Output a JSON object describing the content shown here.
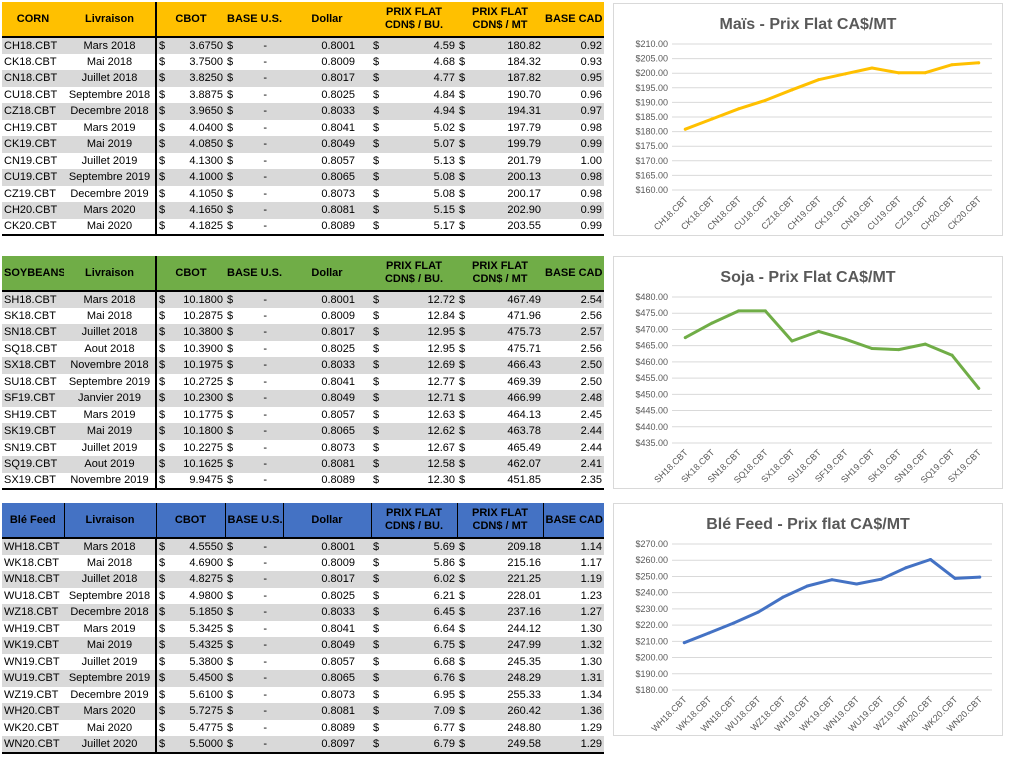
{
  "tables": [
    {
      "header_color": "#ffc000",
      "headers": [
        "CORN",
        "Livraison",
        "CBOT",
        "BASE U.S.",
        "Dollar",
        "PRIX FLAT\nCDN$ / BU.",
        "PRIX FLAT\nCDN$ / MT",
        "BASE CAD"
      ],
      "rows": [
        [
          "CH18.CBT",
          "Mars 2018",
          "$",
          "3.6750",
          "$",
          "-",
          "0.8001",
          "4.59",
          "180.82",
          "0.92"
        ],
        [
          "CK18.CBT",
          "Mai 2018",
          "$",
          "3.7500",
          "$",
          "-",
          "0.8009",
          "4.68",
          "184.32",
          "0.93"
        ],
        [
          "CN18.CBT",
          "Juillet 2018",
          "$",
          "3.8250",
          "$",
          "-",
          "0.8017",
          "4.77",
          "187.82",
          "0.95"
        ],
        [
          "CU18.CBT",
          "Septembre 2018",
          "$",
          "3.8875",
          "$",
          "-",
          "0.8025",
          "4.84",
          "190.70",
          "0.96"
        ],
        [
          "CZ18.CBT",
          "Decembre 2018",
          "$",
          "3.9650",
          "$",
          "-",
          "0.8033",
          "4.94",
          "194.31",
          "0.97"
        ],
        [
          "CH19.CBT",
          "Mars 2019",
          "$",
          "4.0400",
          "$",
          "-",
          "0.8041",
          "5.02",
          "197.79",
          "0.98"
        ],
        [
          "CK19.CBT",
          "Mai 2019",
          "$",
          "4.0850",
          "$",
          "-",
          "0.8049",
          "5.07",
          "199.79",
          "0.99"
        ],
        [
          "CN19.CBT",
          "Juillet 2019",
          "$",
          "4.1300",
          "$",
          "-",
          "0.8057",
          "5.13",
          "201.79",
          "1.00"
        ],
        [
          "CU19.CBT",
          "Septembre 2019",
          "$",
          "4.1000",
          "$",
          "-",
          "0.8065",
          "5.08",
          "200.13",
          "0.98"
        ],
        [
          "CZ19.CBT",
          "Decembre 2019",
          "$",
          "4.1050",
          "$",
          "-",
          "0.8073",
          "5.08",
          "200.17",
          "0.98"
        ],
        [
          "CH20.CBT",
          "Mars 2020",
          "$",
          "4.1650",
          "$",
          "-",
          "0.8081",
          "5.15",
          "202.90",
          "0.99"
        ],
        [
          "CK20.CBT",
          "Mai 2020",
          "$",
          "4.1825",
          "$",
          "-",
          "0.8089",
          "5.17",
          "203.55",
          "0.99"
        ]
      ]
    },
    {
      "header_color": "#70ad47",
      "headers": [
        "SOYBEANS",
        "Livraison",
        "CBOT",
        "BASE U.S.",
        "Dollar",
        "PRIX FLAT\nCDN$ / BU.",
        "PRIX FLAT\nCDN$ / MT",
        "BASE CAD"
      ],
      "rows": [
        [
          "SH18.CBT",
          "Mars 2018",
          "$",
          "10.1800",
          "$",
          "-",
          "0.8001",
          "12.72",
          "467.49",
          "2.54"
        ],
        [
          "SK18.CBT",
          "Mai 2018",
          "$",
          "10.2875",
          "$",
          "-",
          "0.8009",
          "12.84",
          "471.96",
          "2.56"
        ],
        [
          "SN18.CBT",
          "Juillet 2018",
          "$",
          "10.3800",
          "$",
          "-",
          "0.8017",
          "12.95",
          "475.73",
          "2.57"
        ],
        [
          "SQ18.CBT",
          "Aout 2018",
          "$",
          "10.3900",
          "$",
          "-",
          "0.8025",
          "12.95",
          "475.71",
          "2.56"
        ],
        [
          "SX18.CBT",
          "Novembre 2018",
          "$",
          "10.1975",
          "$",
          "-",
          "0.8033",
          "12.69",
          "466.43",
          "2.50"
        ],
        [
          "SU18.CBT",
          "Septembre 2019",
          "$",
          "10.2725",
          "$",
          "-",
          "0.8041",
          "12.77",
          "469.39",
          "2.50"
        ],
        [
          "SF19.CBT",
          "Janvier 2019",
          "$",
          "10.2300",
          "$",
          "-",
          "0.8049",
          "12.71",
          "466.99",
          "2.48"
        ],
        [
          "SH19.CBT",
          "Mars 2019",
          "$",
          "10.1775",
          "$",
          "-",
          "0.8057",
          "12.63",
          "464.13",
          "2.45"
        ],
        [
          "SK19.CBT",
          "Mai 2019",
          "$",
          "10.1800",
          "$",
          "-",
          "0.8065",
          "12.62",
          "463.78",
          "2.44"
        ],
        [
          "SN19.CBT",
          "Juillet 2019",
          "$",
          "10.2275",
          "$",
          "-",
          "0.8073",
          "12.67",
          "465.49",
          "2.44"
        ],
        [
          "SQ19.CBT",
          "Aout 2019",
          "$",
          "10.1625",
          "$",
          "-",
          "0.8081",
          "12.58",
          "462.07",
          "2.41"
        ],
        [
          "SX19.CBT",
          "Novembre 2019",
          "$",
          "9.9475",
          "$",
          "-",
          "0.8089",
          "12.30",
          "451.85",
          "2.35"
        ]
      ]
    },
    {
      "header_color": "#4472c4",
      "headers": [
        "Blé Feed",
        "Livraison",
        "CBOT",
        "BASE U.S.",
        "Dollar",
        "PRIX FLAT\nCDN$ / BU.",
        "PRIX FLAT\nCDN$ / MT",
        "BASE CAD"
      ],
      "rows": [
        [
          "WH18.CBT",
          "Mars 2018",
          "$",
          "4.5550",
          "$",
          "-",
          "0.8001",
          "5.69",
          "209.18",
          "1.14"
        ],
        [
          "WK18.CBT",
          "Mai 2018",
          "$",
          "4.6900",
          "$",
          "-",
          "0.8009",
          "5.86",
          "215.16",
          "1.17"
        ],
        [
          "WN18.CBT",
          "Juillet 2018",
          "$",
          "4.8275",
          "$",
          "-",
          "0.8017",
          "6.02",
          "221.25",
          "1.19"
        ],
        [
          "WU18.CBT",
          "Septembre 2018",
          "$",
          "4.9800",
          "$",
          "-",
          "0.8025",
          "6.21",
          "228.01",
          "1.23"
        ],
        [
          "WZ18.CBT",
          "Decembre 2018",
          "$",
          "5.1850",
          "$",
          "-",
          "0.8033",
          "6.45",
          "237.16",
          "1.27"
        ],
        [
          "WH19.CBT",
          "Mars 2019",
          "$",
          "5.3425",
          "$",
          "-",
          "0.8041",
          "6.64",
          "244.12",
          "1.30"
        ],
        [
          "WK19.CBT",
          "Mai 2019",
          "$",
          "5.4325",
          "$",
          "-",
          "0.8049",
          "6.75",
          "247.99",
          "1.32"
        ],
        [
          "WN19.CBT",
          "Juillet 2019",
          "$",
          "5.3800",
          "$",
          "-",
          "0.8057",
          "6.68",
          "245.35",
          "1.30"
        ],
        [
          "WU19.CBT",
          "Septembre 2019",
          "$",
          "5.4500",
          "$",
          "-",
          "0.8065",
          "6.76",
          "248.29",
          "1.31"
        ],
        [
          "WZ19.CBT",
          "Decembre 2019",
          "$",
          "5.6100",
          "$",
          "-",
          "0.8073",
          "6.95",
          "255.33",
          "1.34"
        ],
        [
          "WH20.CBT",
          "Mars 2020",
          "$",
          "5.7275",
          "$",
          "-",
          "0.8081",
          "7.09",
          "260.42",
          "1.36"
        ],
        [
          "WK20.CBT",
          "Mai 2020",
          "$",
          "5.4775",
          "$",
          "-",
          "0.8089",
          "6.77",
          "248.80",
          "1.29"
        ],
        [
          "WN20.CBT",
          "Juillet 2020",
          "$",
          "5.5000",
          "$",
          "-",
          "0.8097",
          "6.79",
          "249.58",
          "1.29"
        ]
      ]
    }
  ],
  "chart_data": [
    {
      "type": "line",
      "title": "Maïs - Prix Flat CA$/MT",
      "color": "#ffc000",
      "categories": [
        "CH18.CBT",
        "CK18.CBT",
        "CN18.CBT",
        "CU18.CBT",
        "CZ18.CBT",
        "CH19.CBT",
        "CK19.CBT",
        "CN19.CBT",
        "CU19.CBT",
        "CZ19.CBT",
        "CH20.CBT",
        "CK20.CBT"
      ],
      "values": [
        180.82,
        184.32,
        187.82,
        190.7,
        194.31,
        197.79,
        199.79,
        201.79,
        200.13,
        200.17,
        202.9,
        203.55
      ],
      "yticks": [
        "$160.00",
        "$165.00",
        "$170.00",
        "$175.00",
        "$180.00",
        "$185.00",
        "$190.00",
        "$195.00",
        "$200.00",
        "$205.00",
        "$210.00"
      ],
      "ylim": [
        160,
        210
      ],
      "grid": true,
      "legend": false
    },
    {
      "type": "line",
      "title": "Soja - Prix Flat CA$/MT",
      "color": "#70ad47",
      "categories": [
        "SH18.CBT",
        "SK18.CBT",
        "SN18.CBT",
        "SQ18.CBT",
        "SX18.CBT",
        "SU18.CBT",
        "SF19.CBT",
        "SH19.CBT",
        "SK19.CBT",
        "SN19.CBT",
        "SQ19.CBT",
        "SX19.CBT"
      ],
      "values": [
        467.49,
        471.96,
        475.73,
        475.71,
        466.43,
        469.39,
        466.99,
        464.13,
        463.78,
        465.49,
        462.07,
        451.85
      ],
      "yticks": [
        "$435.00",
        "$440.00",
        "$445.00",
        "$450.00",
        "$455.00",
        "$460.00",
        "$465.00",
        "$470.00",
        "$475.00",
        "$480.00"
      ],
      "ylim": [
        435,
        480
      ],
      "grid": true,
      "legend": false
    },
    {
      "type": "line",
      "title": "Blé Feed - Prix flat CA$/MT",
      "color": "#4472c4",
      "categories": [
        "WH18.CBT",
        "WK18.CBT",
        "WN18.CBT",
        "WU18.CBT",
        "WZ18.CBT",
        "WH19.CBT",
        "WK19.CBT",
        "WN19.CBT",
        "WU19.CBT",
        "WZ19.CBT",
        "WH20.CBT",
        "WK20.CBT",
        "WN20.CBT"
      ],
      "values": [
        209.18,
        215.16,
        221.25,
        228.01,
        237.16,
        244.12,
        247.99,
        245.35,
        248.29,
        255.33,
        260.42,
        248.8,
        249.58
      ],
      "yticks": [
        "$180.00",
        "$190.00",
        "$200.00",
        "$210.00",
        "$220.00",
        "$230.00",
        "$240.00",
        "$250.00",
        "$260.00",
        "$270.00"
      ],
      "ylim": [
        180,
        270
      ],
      "grid": true,
      "legend": false
    }
  ]
}
